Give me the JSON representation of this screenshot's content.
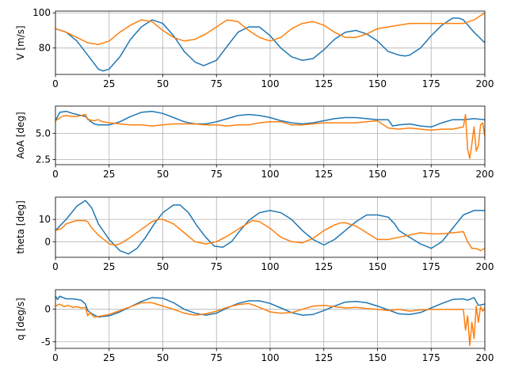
{
  "colors": {
    "series1": "#1f77b4",
    "series2": "#ff7f0e",
    "grid": "#b0b0b0",
    "axis": "#000000"
  },
  "chart_data": [
    {
      "type": "line",
      "ylabel": "V [m/s]",
      "xlim": [
        0,
        200
      ],
      "ylim": [
        65,
        101
      ],
      "xticks": [
        0,
        25,
        50,
        75,
        100,
        125,
        150,
        175,
        200
      ],
      "yticks": [
        80,
        100
      ],
      "grid": true,
      "series": [
        {
          "x": [
            0,
            5,
            10,
            15,
            20,
            22,
            25,
            30,
            35,
            40,
            45,
            50,
            55,
            60,
            65,
            69,
            75,
            80,
            85,
            90,
            95,
            100,
            105,
            110,
            115,
            120,
            125,
            130,
            135,
            140,
            145,
            150,
            155,
            160,
            163,
            165,
            170,
            175,
            180,
            185,
            188,
            190,
            195,
            200
          ],
          "y": [
            91,
            89,
            84,
            76,
            68,
            67,
            68,
            75,
            85,
            92,
            96,
            94,
            87,
            78,
            72,
            70,
            73,
            81,
            89,
            92,
            92,
            87,
            80,
            75,
            73,
            74,
            79,
            85,
            89,
            90,
            88,
            84,
            78,
            76,
            75.5,
            76,
            80,
            87,
            93,
            97,
            97,
            96,
            89,
            83
          ]
        },
        {
          "x": [
            0,
            5,
            10,
            15,
            20,
            25,
            30,
            35,
            40,
            45,
            50,
            55,
            60,
            65,
            70,
            75,
            80,
            85,
            90,
            95,
            100,
            105,
            110,
            115,
            120,
            125,
            130,
            135,
            140,
            145,
            150,
            155,
            160,
            165,
            170,
            175,
            180,
            185,
            190,
            195,
            200
          ],
          "y": [
            91,
            89,
            86,
            83,
            82,
            84,
            89,
            93,
            96,
            95,
            90,
            86,
            84,
            85,
            88,
            92,
            96,
            95,
            90,
            86,
            84,
            86,
            91,
            94,
            95,
            93,
            89,
            86,
            86,
            88,
            91,
            92,
            93,
            94,
            94,
            94,
            94,
            94,
            94,
            96,
            100
          ]
        }
      ]
    },
    {
      "type": "line",
      "ylabel": "AoA [deg]",
      "xlim": [
        0,
        200
      ],
      "ylim": [
        2,
        7.6
      ],
      "xticks": [
        0,
        25,
        50,
        75,
        100,
        125,
        150,
        175,
        200
      ],
      "yticks": [
        2.5,
        5.0
      ],
      "grid": true,
      "series": [
        {
          "x": [
            0,
            2,
            5,
            8,
            10,
            12,
            14,
            16,
            18,
            20,
            22,
            25,
            30,
            35,
            40,
            45,
            50,
            55,
            60,
            65,
            70,
            75,
            80,
            85,
            90,
            95,
            100,
            105,
            110,
            115,
            120,
            125,
            130,
            135,
            140,
            145,
            150,
            155,
            157,
            160,
            165,
            170,
            175,
            180,
            185,
            190,
            195,
            200
          ],
          "y": [
            6.2,
            7.0,
            7.1,
            6.9,
            6.8,
            6.7,
            6.6,
            6.2,
            5.9,
            5.8,
            5.8,
            5.8,
            6.1,
            6.6,
            7.0,
            7.1,
            6.9,
            6.5,
            6.1,
            5.9,
            5.9,
            6.1,
            6.4,
            6.7,
            6.8,
            6.7,
            6.5,
            6.2,
            6.0,
            5.9,
            6.0,
            6.2,
            6.4,
            6.5,
            6.5,
            6.4,
            6.3,
            6.3,
            5.7,
            5.8,
            5.9,
            5.7,
            5.6,
            6.0,
            6.3,
            6.3,
            6.4,
            6.3
          ]
        },
        {
          "x": [
            0,
            3,
            5,
            8,
            10,
            12,
            14,
            15,
            16,
            18,
            20,
            22,
            25,
            30,
            35,
            40,
            45,
            50,
            55,
            60,
            65,
            70,
            75,
            80,
            85,
            90,
            95,
            100,
            105,
            110,
            115,
            120,
            125,
            130,
            135,
            140,
            145,
            150,
            155,
            160,
            165,
            170,
            175,
            180,
            185,
            190,
            191,
            192,
            193,
            194,
            195,
            196,
            197,
            198,
            199,
            200
          ],
          "y": [
            6.2,
            6.6,
            6.7,
            6.6,
            6.6,
            6.7,
            6.8,
            6.3,
            6.3,
            6.2,
            6.3,
            6.1,
            6.0,
            5.9,
            5.8,
            5.8,
            5.7,
            5.8,
            5.9,
            5.9,
            5.9,
            5.8,
            5.8,
            5.7,
            5.8,
            5.8,
            6.0,
            6.1,
            6.1,
            5.8,
            5.8,
            5.9,
            6.0,
            6.0,
            6.0,
            6.0,
            6.1,
            6.2,
            5.5,
            5.4,
            5.5,
            5.4,
            5.3,
            5.4,
            5.4,
            5.6,
            6.8,
            3.5,
            2.6,
            4.0,
            5.6,
            3.3,
            3.8,
            5.8,
            6.0,
            4.7
          ]
        }
      ]
    },
    {
      "type": "line",
      "ylabel": "theta [deg]",
      "xlim": [
        0,
        200
      ],
      "ylim": [
        -7,
        20
      ],
      "xticks": [
        0,
        25,
        50,
        75,
        100,
        125,
        150,
        175,
        200
      ],
      "yticks": [
        0,
        10
      ],
      "grid": true,
      "series": [
        {
          "x": [
            0,
            5,
            10,
            14,
            17,
            20,
            25,
            30,
            34,
            38,
            42,
            46,
            50,
            55,
            58,
            62,
            66,
            70,
            74,
            78,
            82,
            86,
            90,
            95,
            100,
            105,
            110,
            115,
            120,
            125,
            130,
            135,
            140,
            145,
            150,
            155,
            158,
            160,
            165,
            170,
            175,
            180,
            185,
            190,
            195,
            200
          ],
          "y": [
            5,
            10,
            16,
            18.5,
            15,
            8,
            1,
            -4,
            -5.5,
            -3,
            2,
            8,
            13,
            16.5,
            16.5,
            13,
            7,
            2,
            -2,
            -2.5,
            0,
            5,
            9.5,
            13,
            14,
            13,
            10,
            5,
            1,
            -1.5,
            1,
            5,
            9,
            12,
            12,
            11,
            8,
            5,
            2,
            -1,
            -3,
            0,
            6,
            12,
            14,
            14
          ]
        },
        {
          "x": [
            0,
            3,
            5,
            8,
            10,
            12,
            14,
            15,
            17,
            20,
            25,
            28,
            30,
            35,
            40,
            45,
            48,
            50,
            55,
            60,
            65,
            70,
            75,
            80,
            85,
            90,
            92,
            95,
            100,
            105,
            110,
            115,
            120,
            125,
            130,
            133,
            135,
            140,
            145,
            150,
            155,
            160,
            165,
            170,
            175,
            180,
            185,
            190,
            192,
            194,
            196,
            198,
            200
          ],
          "y": [
            5,
            6,
            8,
            9,
            9.5,
            9.5,
            9.5,
            9,
            6,
            3,
            -1,
            -1.5,
            -1,
            2,
            5.5,
            9,
            10,
            10,
            8,
            4,
            0,
            -1,
            0,
            2.5,
            5.5,
            8.5,
            9.5,
            9,
            6,
            2,
            0,
            -0.5,
            1.5,
            5,
            7.5,
            8.5,
            8.5,
            7,
            4,
            1,
            1,
            2,
            3,
            4,
            3.5,
            3.5,
            4,
            4.5,
            0,
            -3,
            -3,
            -4,
            -3
          ]
        }
      ]
    },
    {
      "type": "line",
      "ylabel": "q [deg/s]",
      "xlim": [
        0,
        200
      ],
      "ylim": [
        -6,
        3
      ],
      "xticks": [
        0,
        25,
        50,
        75,
        100,
        125,
        150,
        175,
        200
      ],
      "yticks": [
        -5,
        0
      ],
      "grid": true,
      "series": [
        {
          "x": [
            0,
            1,
            2,
            5,
            8,
            10,
            12,
            14,
            15,
            17,
            20,
            25,
            30,
            35,
            40,
            45,
            50,
            55,
            60,
            65,
            70,
            75,
            80,
            85,
            90,
            95,
            100,
            105,
            110,
            115,
            120,
            125,
            130,
            135,
            140,
            145,
            150,
            155,
            160,
            165,
            170,
            175,
            180,
            185,
            190,
            192,
            195,
            197,
            200
          ],
          "y": [
            2.0,
            1.5,
            2.0,
            1.6,
            1.6,
            1.5,
            1.4,
            0.8,
            -0.2,
            -0.7,
            -1.2,
            -1.0,
            -0.4,
            0.4,
            1.2,
            1.8,
            1.7,
            1.0,
            0.0,
            -0.6,
            -0.9,
            -0.6,
            0.2,
            0.9,
            1.3,
            1.3,
            0.9,
            0.2,
            -0.5,
            -0.9,
            -0.8,
            -0.2,
            0.5,
            1.1,
            1.2,
            1.0,
            0.5,
            -0.1,
            -0.7,
            -0.8,
            -0.5,
            0.2,
            0.9,
            1.5,
            1.6,
            1.4,
            1.8,
            0.6,
            0.8
          ]
        },
        {
          "x": [
            0,
            2,
            4,
            6,
            8,
            10,
            12,
            14,
            15,
            16,
            18,
            20,
            22,
            25,
            30,
            35,
            40,
            45,
            50,
            55,
            60,
            65,
            70,
            75,
            80,
            85,
            90,
            95,
            100,
            105,
            110,
            115,
            120,
            125,
            130,
            135,
            140,
            145,
            150,
            155,
            160,
            165,
            170,
            175,
            180,
            185,
            190,
            191,
            192,
            193,
            194,
            195,
            196,
            197,
            198,
            199,
            200
          ],
          "y": [
            0.5,
            0.8,
            0.4,
            0.6,
            0.3,
            0.4,
            0.2,
            0.3,
            -1.0,
            -0.5,
            -1.2,
            -1.1,
            -1.0,
            -0.8,
            -0.2,
            0.4,
            1.0,
            1.0,
            0.5,
            0.0,
            -0.6,
            -0.9,
            -0.7,
            -0.3,
            0.3,
            0.7,
            0.9,
            0.3,
            -0.4,
            -0.6,
            -0.5,
            0.0,
            0.5,
            0.6,
            0.4,
            0.2,
            0.3,
            0.1,
            0.0,
            -0.2,
            0.0,
            -0.3,
            -0.1,
            0.0,
            0.0,
            0.0,
            0.0,
            -3.2,
            -1.0,
            -5.6,
            -2.0,
            -4.5,
            0.5,
            -2.0,
            0.4,
            -0.3,
            0.2
          ]
        }
      ]
    }
  ]
}
